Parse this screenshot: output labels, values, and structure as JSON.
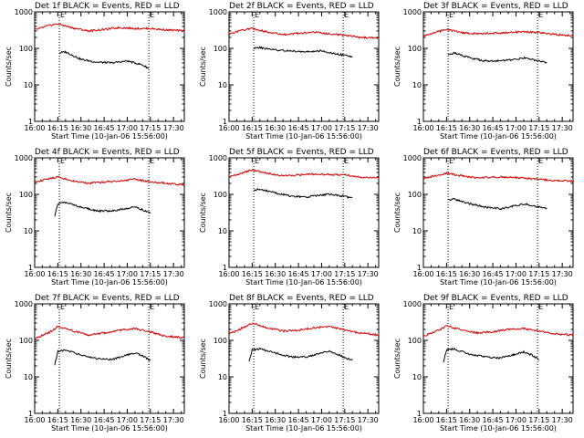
{
  "chart_data": [
    {
      "type": "line",
      "title": "Det 1f BLACK = Events, RED = LLD",
      "xlabel": "Start Time (10-Jan-06 15:56:00)",
      "ylabel": "Counts/sec",
      "yscale": "log",
      "ylim": [
        1,
        1000
      ],
      "xlim": [
        "16:00",
        "17:37"
      ],
      "x_ticks": [
        "16:00",
        "16:15",
        "16:30",
        "16:45",
        "17:00",
        "17:15",
        "17:30"
      ],
      "y_ticks": [
        "1",
        "10",
        "100",
        "1000"
      ],
      "markers": [
        "16:16",
        "17:14"
      ],
      "marker_label": "E",
      "series": [
        {
          "name": "Events",
          "color": "#000000",
          "x": [
            "16:16",
            "16:20",
            "16:30",
            "16:40",
            "16:50",
            "17:00",
            "17:05",
            "17:10",
            "17:14"
          ],
          "values": [
            75,
            80,
            50,
            42,
            40,
            45,
            40,
            35,
            28
          ]
        },
        {
          "name": "LLD",
          "color": "#cc0000",
          "x": [
            "16:00",
            "16:10",
            "16:15",
            "16:25",
            "16:35",
            "16:45",
            "16:55",
            "17:05",
            "17:15",
            "17:25",
            "17:37"
          ],
          "values": [
            320,
            430,
            470,
            360,
            300,
            330,
            370,
            350,
            350,
            320,
            300
          ]
        }
      ]
    },
    {
      "type": "line",
      "title": "Det 2f BLACK = Events, RED = LLD",
      "xlabel": "Start Time (10-Jan-06 15:56:00)",
      "ylabel": "Counts/sec",
      "yscale": "log",
      "ylim": [
        1,
        1000
      ],
      "xlim": [
        "16:00",
        "17:37"
      ],
      "x_ticks": [
        "16:00",
        "16:15",
        "16:30",
        "16:45",
        "17:00",
        "17:15",
        "17:30"
      ],
      "y_ticks": [
        "1",
        "10",
        "100",
        "1000"
      ],
      "markers": [
        "16:16",
        "17:14"
      ],
      "marker_label": "E",
      "series": [
        {
          "name": "Events",
          "color": "#000000",
          "x": [
            "16:16",
            "16:20",
            "16:30",
            "16:40",
            "16:50",
            "17:00",
            "17:05",
            "17:10",
            "17:20"
          ],
          "values": [
            100,
            105,
            90,
            85,
            80,
            85,
            75,
            70,
            60
          ]
        },
        {
          "name": "LLD",
          "color": "#cc0000",
          "x": [
            "16:00",
            "16:10",
            "16:15",
            "16:25",
            "16:35",
            "16:45",
            "16:55",
            "17:05",
            "17:15",
            "17:25",
            "17:37"
          ],
          "values": [
            250,
            320,
            350,
            280,
            240,
            260,
            280,
            250,
            230,
            200,
            190
          ]
        }
      ]
    },
    {
      "type": "line",
      "title": "Det 3f BLACK = Events, RED = LLD",
      "xlabel": "Start Time (10-Jan-06 15:56:00)",
      "ylabel": "Counts/sec",
      "yscale": "log",
      "ylim": [
        1,
        1000
      ],
      "xlim": [
        "16:00",
        "17:37"
      ],
      "x_ticks": [
        "16:00",
        "16:15",
        "16:30",
        "16:45",
        "17:00",
        "17:15",
        "17:30"
      ],
      "y_ticks": [
        "1",
        "10",
        "100",
        "1000"
      ],
      "markers": [
        "16:16",
        "17:14"
      ],
      "marker_label": "E",
      "series": [
        {
          "name": "Events",
          "color": "#000000",
          "x": [
            "16:16",
            "16:20",
            "16:30",
            "16:40",
            "16:50",
            "17:00",
            "17:05",
            "17:10",
            "17:20"
          ],
          "values": [
            70,
            75,
            55,
            45,
            45,
            50,
            55,
            50,
            40
          ]
        },
        {
          "name": "LLD",
          "color": "#cc0000",
          "x": [
            "16:00",
            "16:10",
            "16:15",
            "16:25",
            "16:35",
            "16:45",
            "16:55",
            "17:05",
            "17:15",
            "17:25",
            "17:37"
          ],
          "values": [
            220,
            290,
            330,
            270,
            250,
            260,
            270,
            280,
            270,
            240,
            220
          ]
        }
      ]
    },
    {
      "type": "line",
      "title": "Det 4f BLACK = Events, RED = LLD",
      "xlabel": "Start Time (10-Jan-06 15:56:00)",
      "ylabel": "Counts/sec",
      "yscale": "log",
      "ylim": [
        1,
        1000
      ],
      "xlim": [
        "16:00",
        "17:37"
      ],
      "x_ticks": [
        "16:00",
        "16:15",
        "16:30",
        "16:45",
        "17:00",
        "17:15",
        "17:30"
      ],
      "y_ticks": [
        "1",
        "10",
        "100",
        "1000"
      ],
      "markers": [
        "16:16",
        "17:14"
      ],
      "marker_label": "E",
      "series": [
        {
          "name": "Events",
          "color": "#000000",
          "x": [
            "16:13",
            "16:15",
            "16:20",
            "16:30",
            "16:40",
            "16:50",
            "17:00",
            "17:05",
            "17:10",
            "17:15"
          ],
          "values": [
            25,
            55,
            60,
            45,
            35,
            35,
            42,
            45,
            38,
            30
          ]
        },
        {
          "name": "LLD",
          "color": "#cc0000",
          "x": [
            "16:00",
            "16:10",
            "16:15",
            "16:25",
            "16:35",
            "16:45",
            "16:55",
            "17:05",
            "17:15",
            "17:25",
            "17:37"
          ],
          "values": [
            220,
            270,
            300,
            230,
            200,
            220,
            230,
            260,
            220,
            200,
            180
          ]
        }
      ]
    },
    {
      "type": "line",
      "title": "Det 5f BLACK = Events, RED = LLD",
      "xlabel": "Start Time (10-Jan-06 15:56:00)",
      "ylabel": "Counts/sec",
      "yscale": "log",
      "ylim": [
        1,
        1000
      ],
      "xlim": [
        "16:00",
        "17:37"
      ],
      "x_ticks": [
        "16:00",
        "16:15",
        "16:30",
        "16:45",
        "17:00",
        "17:15",
        "17:30"
      ],
      "y_ticks": [
        "1",
        "10",
        "100",
        "1000"
      ],
      "markers": [
        "16:16",
        "17:14"
      ],
      "marker_label": "E",
      "series": [
        {
          "name": "Events",
          "color": "#000000",
          "x": [
            "16:16",
            "16:20",
            "16:30",
            "16:40",
            "16:50",
            "17:00",
            "17:05",
            "17:10",
            "17:20"
          ],
          "values": [
            130,
            140,
            110,
            90,
            85,
            95,
            100,
            95,
            80
          ]
        },
        {
          "name": "LLD",
          "color": "#cc0000",
          "x": [
            "16:00",
            "16:10",
            "16:15",
            "16:25",
            "16:35",
            "16:45",
            "16:55",
            "17:05",
            "17:15",
            "17:25",
            "17:37"
          ],
          "values": [
            300,
            400,
            470,
            380,
            320,
            340,
            360,
            350,
            340,
            300,
            280
          ]
        }
      ]
    },
    {
      "type": "line",
      "title": "Det 6f BLACK = Events, RED = LLD",
      "xlabel": "Start Time (10-Jan-06 15:56:00)",
      "ylabel": "Counts/sec",
      "yscale": "log",
      "ylim": [
        1,
        1000
      ],
      "xlim": [
        "16:00",
        "17:37"
      ],
      "x_ticks": [
        "16:00",
        "16:15",
        "16:30",
        "16:45",
        "17:00",
        "17:15",
        "17:30"
      ],
      "y_ticks": [
        "1",
        "10",
        "100",
        "1000"
      ],
      "markers": [
        "16:16",
        "17:14"
      ],
      "marker_label": "E",
      "series": [
        {
          "name": "Events",
          "color": "#000000",
          "x": [
            "16:16",
            "16:20",
            "16:30",
            "16:40",
            "16:50",
            "17:00",
            "17:05",
            "17:10",
            "17:20"
          ],
          "values": [
            70,
            75,
            55,
            45,
            40,
            50,
            55,
            50,
            40
          ]
        },
        {
          "name": "LLD",
          "color": "#cc0000",
          "x": [
            "16:00",
            "16:10",
            "16:15",
            "16:25",
            "16:35",
            "16:45",
            "16:55",
            "17:05",
            "17:15",
            "17:25",
            "17:37"
          ],
          "values": [
            280,
            340,
            380,
            320,
            280,
            300,
            300,
            280,
            260,
            240,
            230
          ]
        }
      ]
    },
    {
      "type": "line",
      "title": "Det 7f BLACK = Events, RED = LLD",
      "xlabel": "Start Time (10-Jan-06 15:56:00)",
      "ylabel": "Counts/sec",
      "yscale": "log",
      "ylim": [
        1,
        1000
      ],
      "xlim": [
        "16:00",
        "17:37"
      ],
      "x_ticks": [
        "16:00",
        "16:15",
        "16:30",
        "16:45",
        "17:00",
        "17:15",
        "17:30"
      ],
      "y_ticks": [
        "1",
        "10",
        "100",
        "1000"
      ],
      "markers": [
        "16:16",
        "17:14"
      ],
      "marker_label": "E",
      "series": [
        {
          "name": "Events",
          "color": "#000000",
          "x": [
            "16:13",
            "16:15",
            "16:20",
            "16:30",
            "16:40",
            "16:50",
            "17:00",
            "17:05",
            "17:10",
            "17:15"
          ],
          "values": [
            22,
            50,
            55,
            40,
            32,
            30,
            40,
            45,
            38,
            28
          ]
        },
        {
          "name": "LLD",
          "color": "#cc0000",
          "x": [
            "16:00",
            "16:10",
            "16:15",
            "16:25",
            "16:35",
            "16:45",
            "16:55",
            "17:05",
            "17:15",
            "17:25",
            "17:37"
          ],
          "values": [
            110,
            170,
            240,
            180,
            140,
            160,
            190,
            210,
            170,
            130,
            120
          ]
        }
      ]
    },
    {
      "type": "line",
      "title": "Det 8f BLACK = Events, RED = LLD",
      "xlabel": "Start Time (10-Jan-06 15:56:00)",
      "ylabel": "Counts/sec",
      "yscale": "log",
      "ylim": [
        1,
        1000
      ],
      "xlim": [
        "16:00",
        "17:37"
      ],
      "x_ticks": [
        "16:00",
        "16:15",
        "16:30",
        "16:45",
        "17:00",
        "17:15",
        "17:30"
      ],
      "y_ticks": [
        "1",
        "10",
        "100",
        "1000"
      ],
      "markers": [
        "16:16",
        "17:14"
      ],
      "marker_label": "E",
      "series": [
        {
          "name": "Events",
          "color": "#000000",
          "x": [
            "16:13",
            "16:15",
            "16:20",
            "16:30",
            "16:40",
            "16:50",
            "17:00",
            "17:05",
            "17:10",
            "17:20"
          ],
          "values": [
            25,
            55,
            58,
            45,
            35,
            35,
            45,
            50,
            42,
            28
          ]
        },
        {
          "name": "LLD",
          "color": "#cc0000",
          "x": [
            "16:00",
            "16:10",
            "16:15",
            "16:25",
            "16:35",
            "16:45",
            "16:55",
            "17:05",
            "17:15",
            "17:25",
            "17:37"
          ],
          "values": [
            150,
            230,
            300,
            220,
            180,
            190,
            220,
            240,
            190,
            160,
            140
          ]
        }
      ]
    },
    {
      "type": "line",
      "title": "Det 9f BLACK = Events, RED = LLD",
      "xlabel": "Start Time (10-Jan-06 15:56:00)",
      "ylabel": "Counts/sec",
      "yscale": "log",
      "ylim": [
        1,
        1000
      ],
      "xlim": [
        "16:00",
        "17:37"
      ],
      "x_ticks": [
        "16:00",
        "16:15",
        "16:30",
        "16:45",
        "17:00",
        "17:15",
        "17:30"
      ],
      "y_ticks": [
        "1",
        "10",
        "100",
        "1000"
      ],
      "markers": [
        "16:16",
        "17:14"
      ],
      "marker_label": "E",
      "series": [
        {
          "name": "Events",
          "color": "#000000",
          "x": [
            "16:13",
            "16:15",
            "16:20",
            "16:30",
            "16:40",
            "16:50",
            "17:00",
            "17:05",
            "17:10",
            "17:15"
          ],
          "values": [
            25,
            55,
            58,
            42,
            35,
            33,
            42,
            48,
            40,
            30
          ]
        },
        {
          "name": "LLD",
          "color": "#cc0000",
          "x": [
            "16:00",
            "16:10",
            "16:15",
            "16:25",
            "16:35",
            "16:45",
            "16:55",
            "17:05",
            "17:15",
            "17:25",
            "17:37"
          ],
          "values": [
            130,
            190,
            250,
            190,
            160,
            170,
            200,
            210,
            180,
            150,
            140
          ]
        }
      ]
    }
  ]
}
